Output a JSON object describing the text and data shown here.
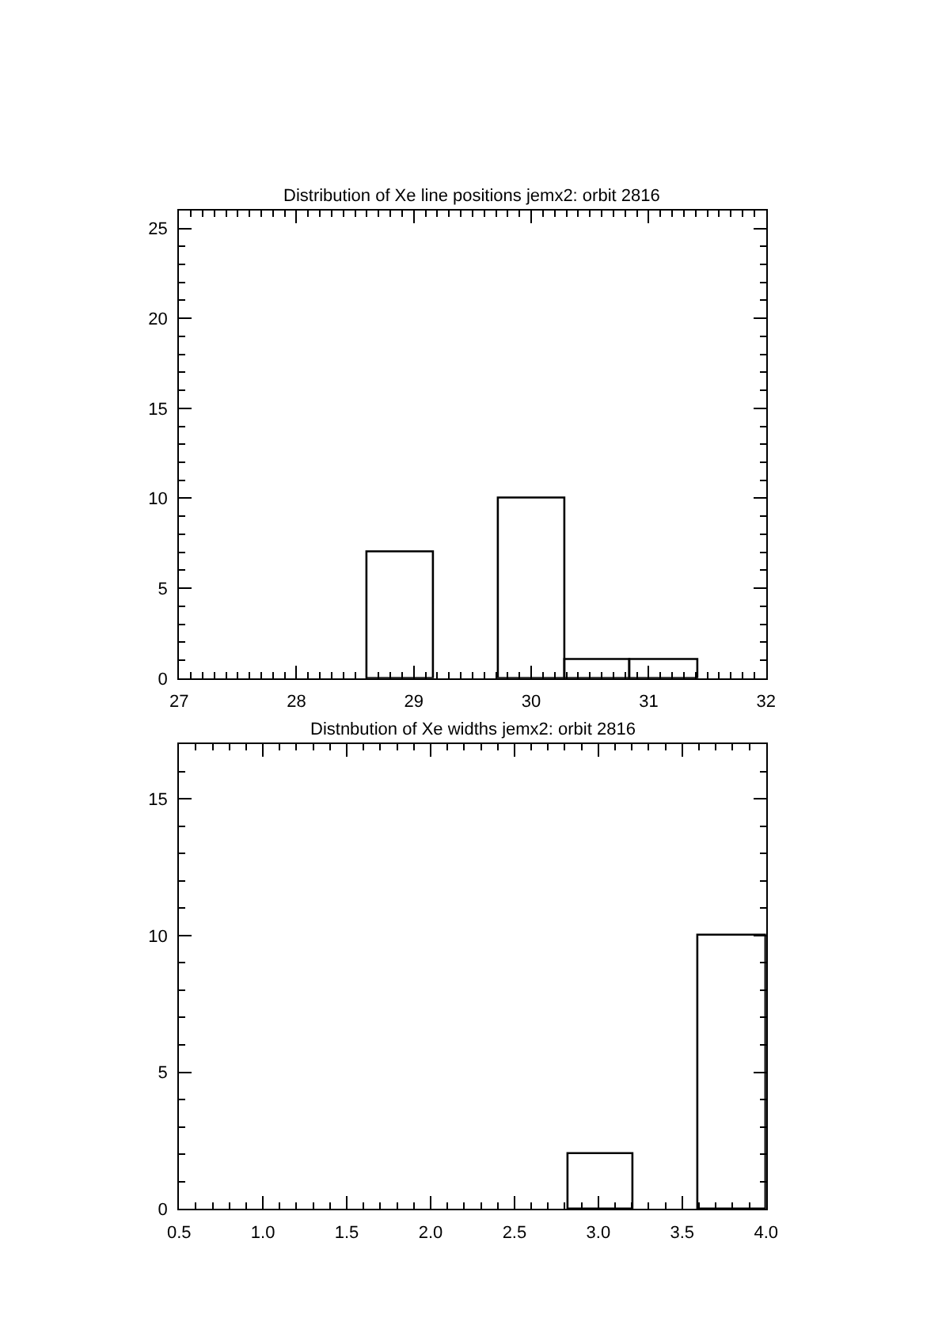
{
  "chart_data": [
    {
      "type": "histogram",
      "title": "Distribution of Xe line positions jemx2: orbit 2816",
      "bins": [
        28.6,
        29.17,
        29.72,
        30.29,
        30.85,
        31.42
      ],
      "values": [
        7,
        null,
        10,
        1,
        1
      ],
      "color": "#000000",
      "xlim": [
        27,
        32
      ],
      "xticks": [
        27,
        28,
        29,
        30,
        31,
        32
      ],
      "ylim": [
        0,
        26
      ],
      "yticks": [
        0,
        5,
        10,
        15,
        20,
        25
      ],
      "grid": false
    },
    {
      "type": "histogram",
      "title": "Distnbution of Xe widths jemx2: orbit 2816",
      "bins": [
        2.82,
        3.21,
        3.6,
        4.0
      ],
      "values": [
        2,
        null,
        10
      ],
      "color": "#000000",
      "xlim": [
        0.5,
        4.0
      ],
      "xticks": [
        {
          "value": 0.5,
          "label": "0.5"
        },
        {
          "value": 1.0,
          "label": "1.0"
        },
        {
          "value": 1.5,
          "label": "1.5"
        },
        {
          "value": 2.0,
          "label": "2.0"
        },
        {
          "value": 2.5,
          "label": "2.5"
        },
        {
          "value": 3.0,
          "label": "3.0"
        },
        {
          "value": 3.5,
          "label": "3.5"
        },
        {
          "value": 4.0,
          "label": "4.0"
        }
      ],
      "ylim": [
        0,
        17
      ],
      "yticks": [
        0,
        5,
        10,
        15
      ],
      "grid": false
    }
  ]
}
